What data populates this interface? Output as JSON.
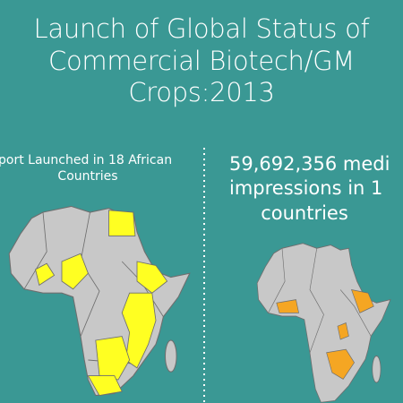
{
  "header": {
    "title_lines": [
      "Launch of Global Status of",
      "Commercial Biotech/GM",
      "Crops:2013"
    ]
  },
  "left_panel": {
    "lines": [
      "port Launched in 18 African",
      "Countries"
    ]
  },
  "right_panel": {
    "lines": [
      "59,692,356 medi",
      "impressions in 1",
      "countries"
    ]
  }
}
